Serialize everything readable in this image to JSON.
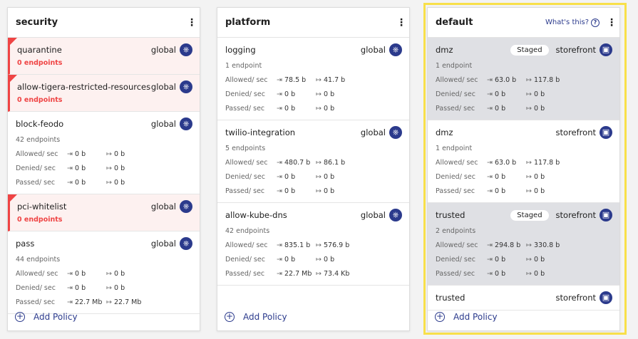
{
  "columns": [
    {
      "title": "security",
      "whats_this": null,
      "add_label": "Add Policy",
      "policies": [
        {
          "name": "quarantine",
          "scope": "global",
          "icon": "kubernetes-icon",
          "endpoints": "0 endpoints",
          "error": true
        },
        {
          "name": "allow-tigera-restricted-resources",
          "scope": "global",
          "icon": "kubernetes-icon",
          "endpoints": "0 endpoints",
          "error": true
        },
        {
          "name": "block-feodo",
          "scope": "global",
          "icon": "kubernetes-icon",
          "endpoints": "42 endpoints",
          "stats": [
            {
              "label": "Allowed/ sec",
              "in": "0 b",
              "out": "0 b"
            },
            {
              "label": "Denied/ sec",
              "in": "0 b",
              "out": "0 b"
            },
            {
              "label": "Passed/ sec",
              "in": "0 b",
              "out": "0 b"
            }
          ]
        },
        {
          "name": "pci-whitelist",
          "scope": "global",
          "icon": "kubernetes-icon",
          "endpoints": "0 endpoints",
          "error": true
        },
        {
          "name": "pass",
          "scope": "global",
          "icon": "kubernetes-icon",
          "endpoints": "44 endpoints",
          "stats": [
            {
              "label": "Allowed/ sec",
              "in": "0 b",
              "out": "0 b"
            },
            {
              "label": "Denied/ sec",
              "in": "0 b",
              "out": "0 b"
            },
            {
              "label": "Passed/ sec",
              "in": "22.7 Mb",
              "out": "22.7 Mb"
            }
          ]
        }
      ]
    },
    {
      "title": "platform",
      "whats_this": null,
      "add_label": "Add Policy",
      "policies": [
        {
          "name": "logging",
          "scope": "global",
          "icon": "kubernetes-icon",
          "endpoints": "1 endpoint",
          "stats": [
            {
              "label": "Allowed/ sec",
              "in": "78.5 b",
              "out": "41.7 b"
            },
            {
              "label": "Denied/ sec",
              "in": "0 b",
              "out": "0 b"
            },
            {
              "label": "Passed/ sec",
              "in": "0 b",
              "out": "0 b"
            }
          ]
        },
        {
          "name": "twilio-integration",
          "scope": "global",
          "icon": "kubernetes-icon",
          "endpoints": "5 endpoints",
          "stats": [
            {
              "label": "Allowed/ sec",
              "in": "480.7 b",
              "out": "86.1 b"
            },
            {
              "label": "Denied/ sec",
              "in": "0 b",
              "out": "0 b"
            },
            {
              "label": "Passed/ sec",
              "in": "0 b",
              "out": "0 b"
            }
          ]
        },
        {
          "name": "allow-kube-dns",
          "scope": "global",
          "icon": "kubernetes-icon",
          "endpoints": "42 endpoints",
          "stats": [
            {
              "label": "Allowed/ sec",
              "in": "835.1 b",
              "out": "576.9 b"
            },
            {
              "label": "Denied/ sec",
              "in": "0 b",
              "out": "0 b"
            },
            {
              "label": "Passed/ sec",
              "in": "22.7 Mb",
              "out": "73.4 Kb"
            }
          ]
        }
      ]
    },
    {
      "title": "default",
      "whats_this": "What's this?",
      "add_label": "Add Policy",
      "policies": [
        {
          "name": "dmz",
          "staged": "Staged",
          "scope": "storefront",
          "icon": "namespace-icon",
          "endpoints": "1 endpoint",
          "stats": [
            {
              "label": "Allowed/ sec",
              "in": "63.0 b",
              "out": "117.8 b"
            },
            {
              "label": "Denied/ sec",
              "in": "0 b",
              "out": "0 b"
            },
            {
              "label": "Passed/ sec",
              "in": "0 b",
              "out": "0 b"
            }
          ]
        },
        {
          "name": "dmz",
          "scope": "storefront",
          "icon": "namespace-icon",
          "endpoints": "1 endpoint",
          "stats": [
            {
              "label": "Allowed/ sec",
              "in": "63.0 b",
              "out": "117.8 b"
            },
            {
              "label": "Denied/ sec",
              "in": "0 b",
              "out": "0 b"
            },
            {
              "label": "Passed/ sec",
              "in": "0 b",
              "out": "0 b"
            }
          ]
        },
        {
          "name": "trusted",
          "staged": "Staged",
          "scope": "storefront",
          "icon": "namespace-icon",
          "endpoints": "2 endpoints",
          "stats": [
            {
              "label": "Allowed/ sec",
              "in": "294.8 b",
              "out": "330.8 b"
            },
            {
              "label": "Denied/ sec",
              "in": "0 b",
              "out": "0 b"
            },
            {
              "label": "Passed/ sec",
              "in": "0 b",
              "out": "0 b"
            }
          ]
        },
        {
          "name": "trusted",
          "scope": "storefront",
          "icon": "namespace-icon"
        }
      ]
    }
  ],
  "colors": {
    "accent": "#2b3a8c",
    "error": "#ef4444",
    "highlight": "#f8e04a",
    "staged_bg": "#dfe0e4"
  }
}
